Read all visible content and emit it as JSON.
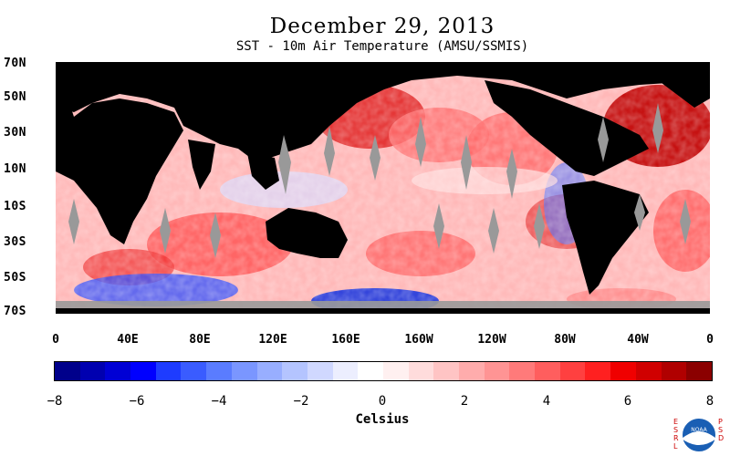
{
  "title": "December 29, 2013",
  "subtitle": "SST - 10m Air Temperature (AMSU/SSMIS)",
  "lat_labels": [
    "70N",
    "50N",
    "30N",
    "10N",
    "10S",
    "30S",
    "50S",
    "70S"
  ],
  "lon_labels": [
    "0",
    "40E",
    "80E",
    "120E",
    "160E",
    "160W",
    "120W",
    "80W",
    "40W",
    "0"
  ],
  "colorbar": {
    "unit": "Celsius",
    "tick_labels": [
      "−8",
      "−6",
      "−4",
      "−2",
      "0",
      "2",
      "4",
      "6",
      "8"
    ],
    "colors": [
      "#00008b",
      "#0000b0",
      "#0000d5",
      "#0000ff",
      "#1e3cff",
      "#3a5cff",
      "#5a7cff",
      "#7a96ff",
      "#98aeff",
      "#b4c4ff",
      "#d0d8ff",
      "#eceefe",
      "#ffffff",
      "#fff0f0",
      "#ffdcdc",
      "#ffc4c4",
      "#ffacac",
      "#ff9494",
      "#ff7a7a",
      "#ff5e5e",
      "#ff4040",
      "#ff2020",
      "#f00000",
      "#d00000",
      "#b00000",
      "#8b0000"
    ]
  },
  "colors": {
    "land": "#000000",
    "ice": "#999999",
    "warm": "#ff4040",
    "cool": "#3a5cff"
  },
  "logo": {
    "left_text": "ESRL",
    "right_text": "PSD",
    "center_text": "NOAA"
  }
}
